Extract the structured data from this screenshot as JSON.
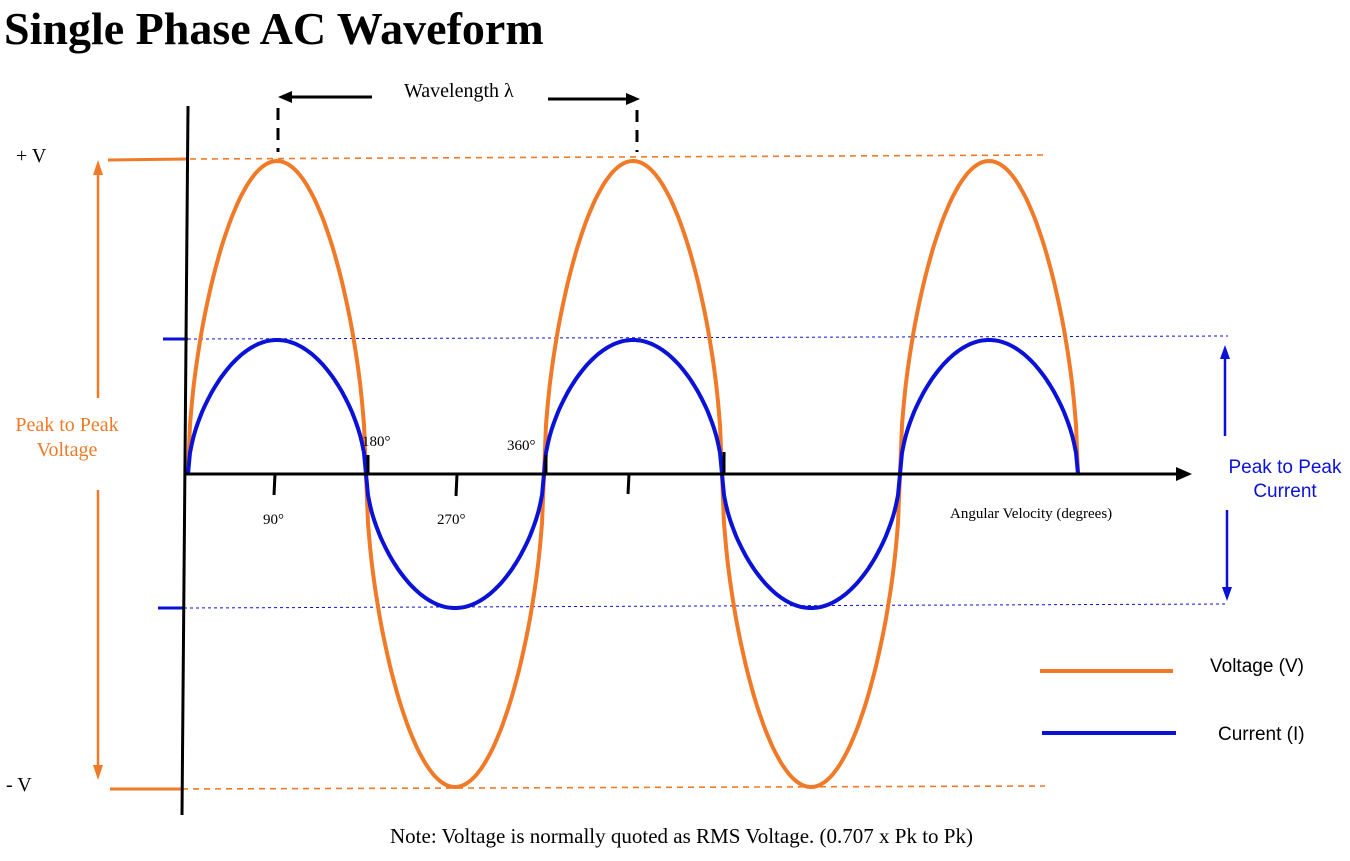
{
  "title": "Single Phase AC Waveform",
  "wavelength_label": "Wavelength λ",
  "plus_v": "+ V",
  "minus_v": "- V",
  "peak_to_peak_voltage": [
    "Peak to Peak",
    "Voltage"
  ],
  "peak_to_peak_current": [
    "Peak to Peak",
    "Current"
  ],
  "axis_label": "Angular Velocity (degrees)",
  "degree_labels": {
    "d90": "90°",
    "d180": "180°",
    "d270": "270°",
    "d360": "360°"
  },
  "legend": {
    "voltage": "Voltage (V)",
    "current": "Current (I)"
  },
  "note": "Note: Voltage is normally quoted as RMS Voltage. (0.707 x Pk to Pk)",
  "colors": {
    "voltage": "#f07a28",
    "current": "#0a12d8",
    "axis": "#000000"
  },
  "waveform": {
    "cycles": 2.5,
    "voltage_amplitude": 1.0,
    "current_amplitude": 0.42
  }
}
